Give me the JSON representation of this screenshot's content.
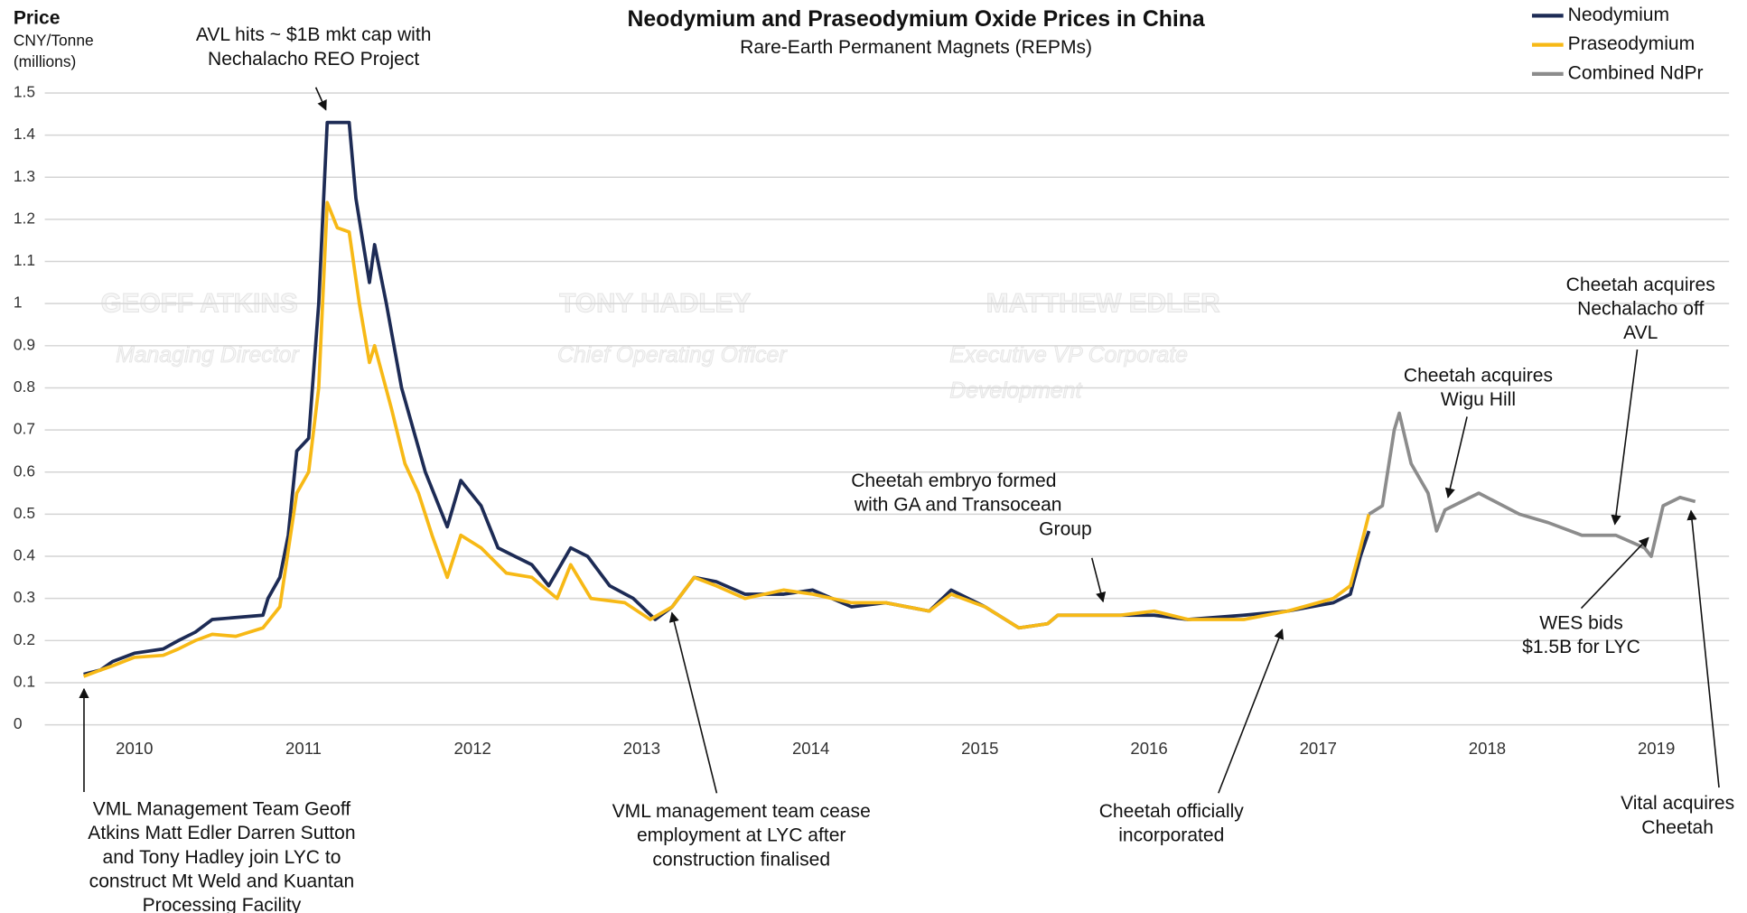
{
  "chart_data": {
    "type": "line",
    "title": "Neodymium and Praseodymium Oxide Prices in China",
    "subtitle": "Rare-Earth Permanent Magnets (REPMs)",
    "y_label": [
      "Price",
      "CNY/Tonne",
      "(millions)"
    ],
    "xlim": [
      2009.47,
      2019.43
    ],
    "xticks": [
      2010,
      2011,
      2012,
      2013,
      2014,
      2015,
      2016,
      2017,
      2018,
      2019
    ],
    "ylim": [
      0,
      1.5
    ],
    "yticks": [
      0,
      0.1,
      0.2,
      0.3,
      0.4,
      0.5,
      0.6,
      0.7,
      0.8,
      0.9,
      1,
      1.1,
      1.2,
      1.3,
      1.4,
      1.5
    ],
    "grid": true,
    "legend": "top-right",
    "series": [
      {
        "name": "Neodymium",
        "color": "#1d2b55",
        "x": [
          2009.7,
          2009.8,
          2009.87,
          2010.0,
          2010.17,
          2010.26,
          2010.36,
          2010.46,
          2010.76,
          2010.79,
          2010.86,
          2010.91,
          2010.96,
          2011.03,
          2011.09,
          2011.14,
          2011.27,
          2011.31,
          2011.39,
          2011.42,
          2011.49,
          2011.58,
          2011.72,
          2011.85,
          2011.93,
          2012.05,
          2012.15,
          2012.25,
          2012.35,
          2012.45,
          2012.58,
          2012.68,
          2012.81,
          2012.95,
          2013.08,
          2013.18,
          2013.31,
          2013.44,
          2013.61,
          2013.84,
          2014.01,
          2014.24,
          2014.44,
          2014.7,
          2014.83,
          2015.03,
          2015.23,
          2015.4,
          2015.46,
          2015.83,
          2016.03,
          2016.23,
          2016.56,
          2016.82,
          2017.09,
          2017.19,
          2017.25,
          2017.3
        ],
        "values": [
          0.12,
          0.13,
          0.15,
          0.17,
          0.18,
          0.2,
          0.22,
          0.25,
          0.26,
          0.3,
          0.35,
          0.45,
          0.65,
          0.68,
          1.0,
          1.43,
          1.43,
          1.25,
          1.05,
          1.14,
          1.0,
          0.8,
          0.6,
          0.47,
          0.58,
          0.52,
          0.42,
          0.4,
          0.38,
          0.33,
          0.42,
          0.4,
          0.33,
          0.3,
          0.25,
          0.28,
          0.35,
          0.34,
          0.31,
          0.31,
          0.32,
          0.28,
          0.29,
          0.27,
          0.32,
          0.28,
          0.23,
          0.24,
          0.26,
          0.26,
          0.26,
          0.25,
          0.26,
          0.27,
          0.29,
          0.31,
          0.4,
          0.46
        ]
      },
      {
        "name": "Praseodymium",
        "color": "#f7b916",
        "x": [
          2009.7,
          2009.8,
          2009.87,
          2010.0,
          2010.17,
          2010.26,
          2010.36,
          2010.46,
          2010.6,
          2010.76,
          2010.86,
          2010.96,
          2011.03,
          2011.09,
          2011.14,
          2011.2,
          2011.27,
          2011.33,
          2011.39,
          2011.42,
          2011.52,
          2011.6,
          2011.68,
          2011.76,
          2011.85,
          2011.93,
          2012.05,
          2012.2,
          2012.35,
          2012.5,
          2012.58,
          2012.7,
          2012.9,
          2013.05,
          2013.18,
          2013.31,
          2013.44,
          2013.61,
          2013.84,
          2014.01,
          2014.24,
          2014.44,
          2014.7,
          2014.83,
          2015.03,
          2015.23,
          2015.4,
          2015.46,
          2015.83,
          2016.03,
          2016.23,
          2016.56,
          2016.82,
          2017.09,
          2017.19,
          2017.25,
          2017.3
        ],
        "values": [
          0.115,
          0.13,
          0.14,
          0.16,
          0.165,
          0.18,
          0.2,
          0.215,
          0.21,
          0.23,
          0.28,
          0.55,
          0.6,
          0.8,
          1.24,
          1.18,
          1.17,
          1.0,
          0.86,
          0.9,
          0.75,
          0.62,
          0.55,
          0.45,
          0.35,
          0.45,
          0.42,
          0.36,
          0.35,
          0.3,
          0.38,
          0.3,
          0.29,
          0.25,
          0.28,
          0.35,
          0.33,
          0.3,
          0.32,
          0.31,
          0.29,
          0.29,
          0.27,
          0.31,
          0.28,
          0.23,
          0.24,
          0.26,
          0.26,
          0.27,
          0.25,
          0.25,
          0.27,
          0.3,
          0.33,
          0.42,
          0.5
        ]
      },
      {
        "name": "Combined NdPr",
        "color": "#8c8c8c",
        "x": [
          2017.3,
          2017.38,
          2017.45,
          2017.48,
          2017.55,
          2017.65,
          2017.7,
          2017.75,
          2017.95,
          2018.19,
          2018.36,
          2018.56,
          2018.76,
          2018.93,
          2018.97,
          2019.04,
          2019.14,
          2019.23
        ],
        "values": [
          0.5,
          0.52,
          0.7,
          0.74,
          0.62,
          0.55,
          0.46,
          0.51,
          0.55,
          0.5,
          0.48,
          0.45,
          0.45,
          0.42,
          0.4,
          0.52,
          0.54,
          0.53
        ]
      }
    ],
    "annotations": [
      [
        "AVL hits ~ $1B mkt cap with",
        "Nechalacho REO Project"
      ],
      [
        "Cheetah acquires",
        "Nechalacho off",
        "AVL"
      ],
      [
        "Cheetah acquires",
        "Wigu Hill"
      ],
      [
        "Cheetah embryo formed",
        "with GA and Transocean",
        "Group"
      ],
      [
        "WES bids",
        "$1.5B for LYC"
      ],
      [
        "VML Management Team Geoff",
        "Atkins Matt Edler Darren Sutton",
        "and Tony Hadley join LYC to",
        "construct Mt Weld and Kuantan",
        "Processing Facility"
      ],
      [
        "VML management team cease",
        "employment at LYC after",
        "construction finalised"
      ],
      [
        "Cheetah officially",
        "incorporated"
      ],
      [
        "Vital acquires",
        "Cheetah"
      ]
    ],
    "watermarks": [
      "GEOFF ATKINS",
      "Managing Director",
      "TONY HADLEY",
      "Chief Operating Officer",
      "MATTHEW EDLER",
      "Executive VP Corporate",
      "Development"
    ]
  }
}
